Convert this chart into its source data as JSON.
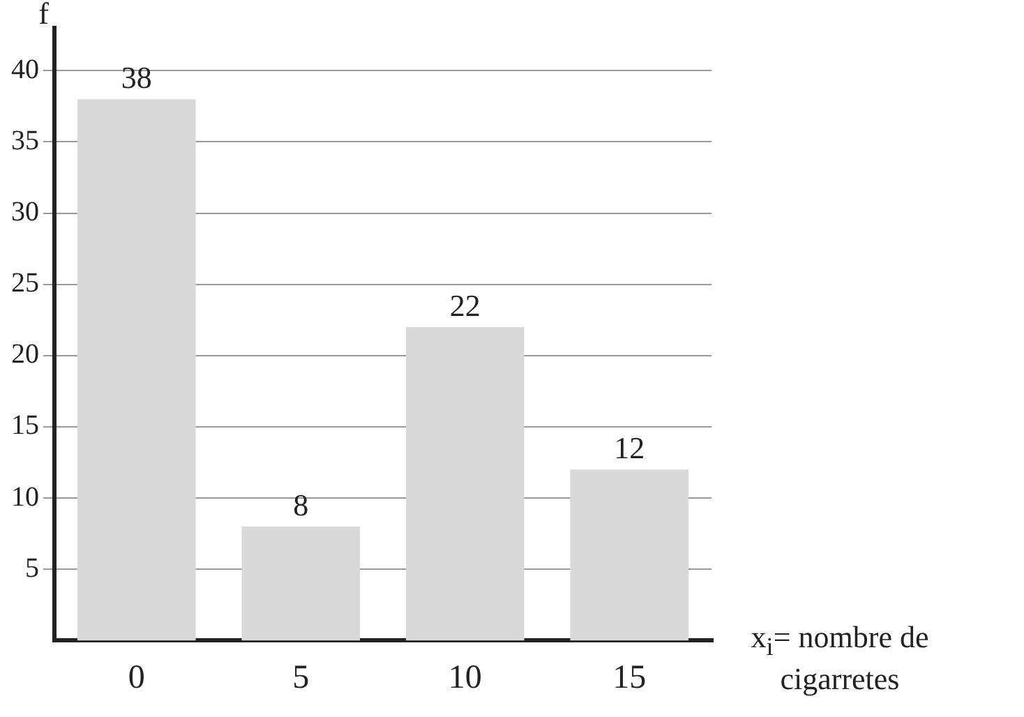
{
  "chart_data": {
    "type": "bar",
    "ylabel": "f",
    "xlabel": "x$_{i}$= nombre de cigarretes",
    "categories": [
      "0",
      "5",
      "10",
      "15"
    ],
    "values": [
      38,
      8,
      22,
      12
    ],
    "color": "#d9d9d9",
    "ylim": [
      0,
      43
    ],
    "yticks": [
      5,
      10,
      15,
      20,
      25,
      30,
      35,
      40
    ],
    "grid": "y",
    "legend": false,
    "data_labels": true
  }
}
